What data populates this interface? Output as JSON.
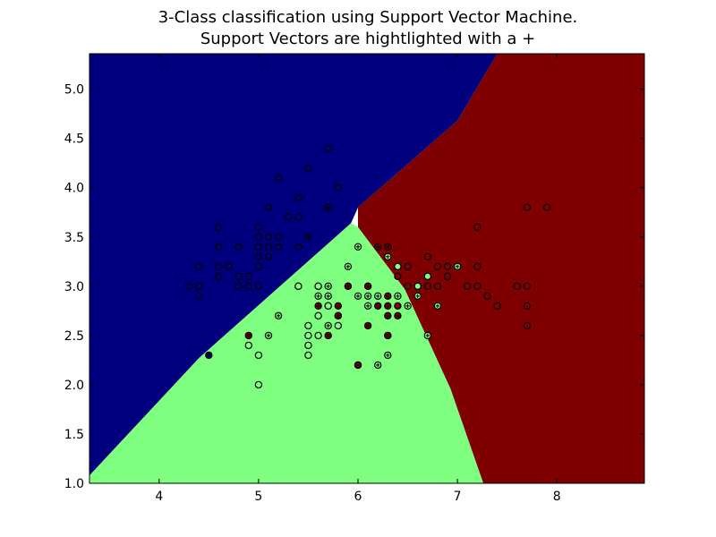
{
  "chart_data": {
    "type": "scatter",
    "title_lines": [
      "3-Class classification using Support Vector Machine.",
      "Support Vectors are hightlighted with a +"
    ],
    "xlabel": "",
    "ylabel": "",
    "xlim": [
      3.3,
      8.88
    ],
    "ylim": [
      1.0,
      5.36
    ],
    "x_ticks": [
      4,
      5,
      6,
      7,
      8
    ],
    "y_ticks": [
      1.0,
      1.5,
      2.0,
      2.5,
      3.0,
      3.5,
      4.0,
      4.5,
      5.0
    ],
    "x_tick_labels": [
      "4",
      "5",
      "6",
      "7",
      "8"
    ],
    "y_tick_labels": [
      "1.0",
      "1.5",
      "2.0",
      "2.5",
      "3.0",
      "3.5",
      "4.0",
      "4.5",
      "5.0"
    ],
    "grid": false,
    "legend": "none",
    "class_colors": {
      "0": "#00007f",
      "1": "#7fff7f",
      "2": "#7f0000"
    },
    "regions": [
      {
        "class": 0,
        "polygon": [
          [
            3.3,
            1.0
          ],
          [
            3.3,
            5.36
          ],
          [
            7.4,
            5.36
          ],
          [
            7.0,
            4.68
          ],
          [
            6.0,
            3.8
          ],
          [
            5.93,
            3.64
          ],
          [
            4.4,
            2.27
          ],
          [
            3.3,
            1.08
          ]
        ]
      },
      {
        "class": 2,
        "polygon": [
          [
            7.4,
            5.36
          ],
          [
            8.88,
            5.36
          ],
          [
            8.88,
            1.0
          ],
          [
            7.26,
            1.0
          ],
          [
            6.93,
            1.96
          ],
          [
            6.47,
            2.97
          ],
          [
            6.0,
            3.6
          ],
          [
            6.0,
            3.8
          ],
          [
            7.0,
            4.68
          ]
        ]
      },
      {
        "class": 1,
        "polygon": [
          [
            3.3,
            1.08
          ],
          [
            4.4,
            2.27
          ],
          [
            5.93,
            3.64
          ],
          [
            6.0,
            3.6
          ],
          [
            6.47,
            2.97
          ],
          [
            6.93,
            1.96
          ],
          [
            7.26,
            1.0
          ],
          [
            3.3,
            1.0
          ]
        ]
      }
    ],
    "points": [
      {
        "x": 5.1,
        "y": 3.5,
        "class": 0,
        "sv": false
      },
      {
        "x": 4.9,
        "y": 3.0,
        "class": 0,
        "sv": false
      },
      {
        "x": 4.7,
        "y": 3.2,
        "class": 0,
        "sv": false
      },
      {
        "x": 4.6,
        "y": 3.1,
        "class": 0,
        "sv": false
      },
      {
        "x": 5.0,
        "y": 3.6,
        "class": 0,
        "sv": false
      },
      {
        "x": 5.4,
        "y": 3.9,
        "class": 0,
        "sv": false
      },
      {
        "x": 4.6,
        "y": 3.4,
        "class": 0,
        "sv": false
      },
      {
        "x": 5.0,
        "y": 3.4,
        "class": 0,
        "sv": false
      },
      {
        "x": 4.4,
        "y": 2.9,
        "class": 0,
        "sv": false
      },
      {
        "x": 4.8,
        "y": 3.4,
        "class": 0,
        "sv": false
      },
      {
        "x": 4.3,
        "y": 3.0,
        "class": 0,
        "sv": false
      },
      {
        "x": 5.8,
        "y": 4.0,
        "class": 0,
        "sv": false
      },
      {
        "x": 5.7,
        "y": 4.4,
        "class": 0,
        "sv": false
      },
      {
        "x": 5.4,
        "y": 3.9,
        "class": 0,
        "sv": false
      },
      {
        "x": 5.7,
        "y": 3.8,
        "class": 0,
        "sv": false
      },
      {
        "x": 5.1,
        "y": 3.8,
        "class": 0,
        "sv": false
      },
      {
        "x": 5.4,
        "y": 3.4,
        "class": 0,
        "sv": false
      },
      {
        "x": 4.6,
        "y": 3.6,
        "class": 0,
        "sv": false
      },
      {
        "x": 4.8,
        "y": 3.4,
        "class": 0,
        "sv": false
      },
      {
        "x": 5.0,
        "y": 3.0,
        "class": 0,
        "sv": false
      },
      {
        "x": 5.2,
        "y": 3.5,
        "class": 0,
        "sv": false
      },
      {
        "x": 5.2,
        "y": 3.4,
        "class": 0,
        "sv": false
      },
      {
        "x": 4.7,
        "y": 3.2,
        "class": 0,
        "sv": false
      },
      {
        "x": 4.8,
        "y": 3.1,
        "class": 0,
        "sv": false
      },
      {
        "x": 5.4,
        "y": 3.4,
        "class": 0,
        "sv": false
      },
      {
        "x": 5.2,
        "y": 4.1,
        "class": 0,
        "sv": false
      },
      {
        "x": 5.5,
        "y": 4.2,
        "class": 0,
        "sv": false
      },
      {
        "x": 5.0,
        "y": 3.2,
        "class": 0,
        "sv": false
      },
      {
        "x": 5.5,
        "y": 3.5,
        "class": 0,
        "sv": true
      },
      {
        "x": 4.4,
        "y": 3.0,
        "class": 0,
        "sv": false
      },
      {
        "x": 5.1,
        "y": 3.4,
        "class": 0,
        "sv": false
      },
      {
        "x": 5.0,
        "y": 3.5,
        "class": 0,
        "sv": false
      },
      {
        "x": 4.5,
        "y": 2.3,
        "class": 0,
        "sv": true
      },
      {
        "x": 4.4,
        "y": 3.2,
        "class": 0,
        "sv": false
      },
      {
        "x": 5.1,
        "y": 3.8,
        "class": 0,
        "sv": false
      },
      {
        "x": 4.8,
        "y": 3.0,
        "class": 0,
        "sv": false
      },
      {
        "x": 5.3,
        "y": 3.7,
        "class": 0,
        "sv": false
      },
      {
        "x": 5.0,
        "y": 3.3,
        "class": 0,
        "sv": false
      },
      {
        "x": 5.4,
        "y": 3.7,
        "class": 0,
        "sv": false
      },
      {
        "x": 5.7,
        "y": 3.8,
        "class": 0,
        "sv": true
      },
      {
        "x": 5.1,
        "y": 3.3,
        "class": 0,
        "sv": false
      },
      {
        "x": 4.6,
        "y": 3.2,
        "class": 0,
        "sv": false
      },
      {
        "x": 5.0,
        "y": 3.4,
        "class": 0,
        "sv": false
      },
      {
        "x": 4.9,
        "y": 3.1,
        "class": 0,
        "sv": false
      },
      {
        "x": 5.4,
        "y": 3.0,
        "class": 1,
        "sv": true
      },
      {
        "x": 5.5,
        "y": 2.3,
        "class": 1,
        "sv": false
      },
      {
        "x": 5.7,
        "y": 2.8,
        "class": 1,
        "sv": true
      },
      {
        "x": 6.3,
        "y": 3.3,
        "class": 1,
        "sv": true
      },
      {
        "x": 4.9,
        "y": 2.4,
        "class": 1,
        "sv": false
      },
      {
        "x": 6.6,
        "y": 2.9,
        "class": 1,
        "sv": true
      },
      {
        "x": 5.2,
        "y": 2.7,
        "class": 1,
        "sv": true
      },
      {
        "x": 5.0,
        "y": 2.0,
        "class": 1,
        "sv": false
      },
      {
        "x": 5.9,
        "y": 3.0,
        "class": 1,
        "sv": true
      },
      {
        "x": 6.0,
        "y": 2.2,
        "class": 1,
        "sv": false
      },
      {
        "x": 6.1,
        "y": 2.9,
        "class": 1,
        "sv": true
      },
      {
        "x": 5.6,
        "y": 2.9,
        "class": 1,
        "sv": true
      },
      {
        "x": 6.7,
        "y": 3.1,
        "class": 1,
        "sv": true
      },
      {
        "x": 5.6,
        "y": 3.0,
        "class": 1,
        "sv": true
      },
      {
        "x": 5.8,
        "y": 2.7,
        "class": 1,
        "sv": true
      },
      {
        "x": 6.2,
        "y": 2.2,
        "class": 1,
        "sv": true
      },
      {
        "x": 5.6,
        "y": 2.5,
        "class": 1,
        "sv": false
      },
      {
        "x": 5.9,
        "y": 3.2,
        "class": 1,
        "sv": true
      },
      {
        "x": 6.1,
        "y": 2.8,
        "class": 1,
        "sv": true
      },
      {
        "x": 6.3,
        "y": 2.5,
        "class": 1,
        "sv": false
      },
      {
        "x": 6.4,
        "y": 2.9,
        "class": 1,
        "sv": true
      },
      {
        "x": 6.6,
        "y": 3.0,
        "class": 1,
        "sv": true
      },
      {
        "x": 6.8,
        "y": 2.8,
        "class": 1,
        "sv": true
      },
      {
        "x": 6.0,
        "y": 2.9,
        "class": 1,
        "sv": true
      },
      {
        "x": 5.7,
        "y": 2.6,
        "class": 1,
        "sv": true
      },
      {
        "x": 5.5,
        "y": 2.4,
        "class": 1,
        "sv": false
      },
      {
        "x": 5.5,
        "y": 2.6,
        "class": 1,
        "sv": false
      },
      {
        "x": 5.8,
        "y": 2.7,
        "class": 1,
        "sv": false
      },
      {
        "x": 5.4,
        "y": 3.0,
        "class": 1,
        "sv": false
      },
      {
        "x": 6.0,
        "y": 3.4,
        "class": 1,
        "sv": true
      },
      {
        "x": 6.7,
        "y": 3.1,
        "class": 1,
        "sv": false
      },
      {
        "x": 6.3,
        "y": 2.3,
        "class": 1,
        "sv": true
      },
      {
        "x": 5.6,
        "y": 3.0,
        "class": 1,
        "sv": false
      },
      {
        "x": 5.5,
        "y": 2.5,
        "class": 1,
        "sv": false
      },
      {
        "x": 6.1,
        "y": 3.0,
        "class": 1,
        "sv": true
      },
      {
        "x": 5.8,
        "y": 2.6,
        "class": 1,
        "sv": false
      },
      {
        "x": 5.0,
        "y": 2.3,
        "class": 1,
        "sv": false
      },
      {
        "x": 5.6,
        "y": 2.7,
        "class": 1,
        "sv": false
      },
      {
        "x": 5.7,
        "y": 3.0,
        "class": 1,
        "sv": true
      },
      {
        "x": 5.7,
        "y": 2.9,
        "class": 1,
        "sv": true
      },
      {
        "x": 6.2,
        "y": 2.9,
        "class": 1,
        "sv": true
      },
      {
        "x": 5.1,
        "y": 2.5,
        "class": 1,
        "sv": true
      },
      {
        "x": 5.7,
        "y": 2.8,
        "class": 1,
        "sv": false
      },
      {
        "x": 7.0,
        "y": 3.2,
        "class": 1,
        "sv": true
      },
      {
        "x": 6.5,
        "y": 2.8,
        "class": 1,
        "sv": true
      },
      {
        "x": 6.9,
        "y": 3.1,
        "class": 1,
        "sv": false
      },
      {
        "x": 6.7,
        "y": 2.5,
        "class": 1,
        "sv": true
      },
      {
        "x": 6.4,
        "y": 3.2,
        "class": 1,
        "sv": false
      },
      {
        "x": 6.6,
        "y": 3.0,
        "class": 1,
        "sv": false
      },
      {
        "x": 6.3,
        "y": 3.4,
        "class": 2,
        "sv": true
      },
      {
        "x": 6.5,
        "y": 3.0,
        "class": 2,
        "sv": false
      },
      {
        "x": 6.2,
        "y": 3.4,
        "class": 2,
        "sv": true
      },
      {
        "x": 5.8,
        "y": 2.8,
        "class": 2,
        "sv": true
      },
      {
        "x": 6.3,
        "y": 2.9,
        "class": 2,
        "sv": true
      },
      {
        "x": 4.9,
        "y": 2.5,
        "class": 2,
        "sv": true
      },
      {
        "x": 5.6,
        "y": 2.8,
        "class": 2,
        "sv": true
      },
      {
        "x": 5.7,
        "y": 2.5,
        "class": 2,
        "sv": true
      },
      {
        "x": 6.0,
        "y": 2.2,
        "class": 2,
        "sv": true
      },
      {
        "x": 5.8,
        "y": 2.7,
        "class": 2,
        "sv": true
      },
      {
        "x": 6.1,
        "y": 3.0,
        "class": 2,
        "sv": true
      },
      {
        "x": 6.1,
        "y": 2.6,
        "class": 2,
        "sv": true
      },
      {
        "x": 6.3,
        "y": 2.7,
        "class": 2,
        "sv": true
      },
      {
        "x": 6.4,
        "y": 2.7,
        "class": 2,
        "sv": true
      },
      {
        "x": 6.2,
        "y": 2.8,
        "class": 2,
        "sv": true
      },
      {
        "x": 6.3,
        "y": 2.5,
        "class": 2,
        "sv": true
      },
      {
        "x": 6.3,
        "y": 2.8,
        "class": 2,
        "sv": true
      },
      {
        "x": 5.9,
        "y": 3.0,
        "class": 2,
        "sv": true
      },
      {
        "x": 6.4,
        "y": 2.8,
        "class": 2,
        "sv": false
      },
      {
        "x": 6.4,
        "y": 3.1,
        "class": 2,
        "sv": false
      },
      {
        "x": 6.5,
        "y": 3.2,
        "class": 2,
        "sv": false
      },
      {
        "x": 6.7,
        "y": 3.3,
        "class": 2,
        "sv": false
      },
      {
        "x": 6.8,
        "y": 3.2,
        "class": 2,
        "sv": false
      },
      {
        "x": 6.8,
        "y": 3.0,
        "class": 2,
        "sv": false
      },
      {
        "x": 6.9,
        "y": 3.2,
        "class": 2,
        "sv": false
      },
      {
        "x": 6.9,
        "y": 3.1,
        "class": 2,
        "sv": false
      },
      {
        "x": 7.1,
        "y": 3.0,
        "class": 2,
        "sv": false
      },
      {
        "x": 7.2,
        "y": 3.6,
        "class": 2,
        "sv": false
      },
      {
        "x": 7.2,
        "y": 3.2,
        "class": 2,
        "sv": false
      },
      {
        "x": 7.2,
        "y": 3.0,
        "class": 2,
        "sv": false
      },
      {
        "x": 7.3,
        "y": 2.9,
        "class": 2,
        "sv": false
      },
      {
        "x": 7.4,
        "y": 2.8,
        "class": 2,
        "sv": false
      },
      {
        "x": 7.6,
        "y": 3.0,
        "class": 2,
        "sv": false
      },
      {
        "x": 7.7,
        "y": 3.8,
        "class": 2,
        "sv": false
      },
      {
        "x": 7.7,
        "y": 3.0,
        "class": 2,
        "sv": false
      },
      {
        "x": 7.7,
        "y": 2.8,
        "class": 2,
        "sv": false
      },
      {
        "x": 7.7,
        "y": 2.6,
        "class": 2,
        "sv": false
      },
      {
        "x": 7.9,
        "y": 3.8,
        "class": 2,
        "sv": false
      },
      {
        "x": 6.7,
        "y": 3.0,
        "class": 2,
        "sv": false
      }
    ]
  }
}
